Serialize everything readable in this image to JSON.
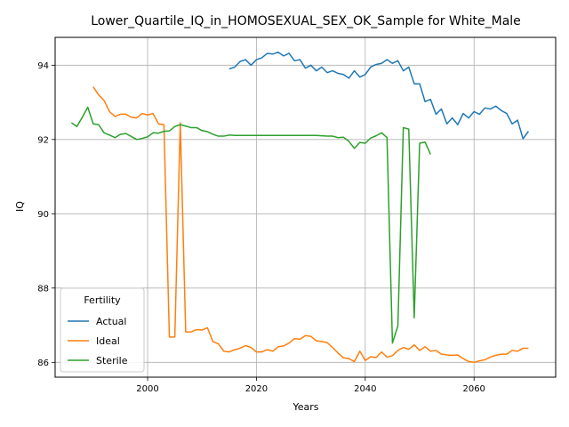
{
  "chart_data": {
    "type": "line",
    "title": "Lower_Quartile_IQ_in_HOMOSEXUAL_SEX_OK_Sample for White_Male",
    "xlabel": "Years",
    "ylabel": "IQ",
    "xlim": [
      1983,
      2075
    ],
    "ylim": [
      85.6,
      94.75
    ],
    "xticks": [
      2000,
      2020,
      2040,
      2060
    ],
    "yticks": [
      86,
      88,
      90,
      92,
      94
    ],
    "grid": true,
    "legend": {
      "title": "Fertility",
      "position": "lower-left"
    },
    "series": [
      {
        "name": "Actual",
        "color": "#1f77b4",
        "x": [
          2015,
          2016,
          2017,
          2018,
          2019,
          2020,
          2021,
          2022,
          2023,
          2024,
          2025,
          2026,
          2027,
          2028,
          2029,
          2030,
          2031,
          2032,
          2033,
          2034,
          2035,
          2036,
          2037,
          2038,
          2039,
          2040,
          2041,
          2042,
          2043,
          2044,
          2045,
          2046,
          2047,
          2048,
          2049,
          2050,
          2051,
          2052,
          2053,
          2054,
          2055,
          2056,
          2057,
          2058,
          2059,
          2060,
          2061,
          2062,
          2063,
          2064,
          2065,
          2066,
          2067,
          2068,
          2069,
          2070
        ],
        "y": [
          93.9,
          93.95,
          94.1,
          94.15,
          94.0,
          94.15,
          94.2,
          94.32,
          94.3,
          94.35,
          94.25,
          94.32,
          94.12,
          94.15,
          93.92,
          94.0,
          93.85,
          93.95,
          93.8,
          93.85,
          93.78,
          93.75,
          93.65,
          93.85,
          93.68,
          93.75,
          93.95,
          94.02,
          94.05,
          94.15,
          94.05,
          94.12,
          93.85,
          93.95,
          93.5,
          93.5,
          93.02,
          93.08,
          92.68,
          92.82,
          92.42,
          92.58,
          92.4,
          92.7,
          92.58,
          92.75,
          92.68,
          92.85,
          92.82,
          92.9,
          92.78,
          92.7,
          92.42,
          92.52,
          92.02,
          92.22
        ]
      },
      {
        "name": "Ideal",
        "color": "#ff7f0e",
        "x": [
          1990,
          1991,
          1992,
          1993,
          1994,
          1995,
          1996,
          1997,
          1998,
          1999,
          2000,
          2001,
          2002,
          2003,
          2004,
          2005,
          2006,
          2007,
          2008,
          2009,
          2010,
          2011,
          2012,
          2013,
          2014,
          2015,
          2016,
          2017,
          2018,
          2019,
          2020,
          2021,
          2022,
          2023,
          2024,
          2025,
          2026,
          2027,
          2028,
          2029,
          2030,
          2031,
          2032,
          2033,
          2034,
          2035,
          2036,
          2037,
          2038,
          2039,
          2040,
          2041,
          2042,
          2043,
          2044,
          2045,
          2046,
          2047,
          2048,
          2049,
          2050,
          2051,
          2052,
          2053,
          2054,
          2055,
          2056,
          2057,
          2058,
          2059,
          2060,
          2061,
          2062,
          2063,
          2064,
          2065,
          2066,
          2067,
          2068,
          2069,
          2070
        ],
        "y": [
          93.42,
          93.2,
          93.05,
          92.75,
          92.62,
          92.68,
          92.68,
          92.6,
          92.58,
          92.7,
          92.66,
          92.7,
          92.42,
          92.4,
          86.68,
          86.68,
          92.45,
          86.82,
          86.82,
          86.88,
          86.87,
          86.93,
          86.56,
          86.5,
          86.3,
          86.28,
          86.34,
          86.38,
          86.45,
          86.4,
          86.28,
          86.28,
          86.34,
          86.3,
          86.42,
          86.44,
          86.52,
          86.64,
          86.62,
          86.72,
          86.7,
          86.58,
          86.56,
          86.53,
          86.4,
          86.25,
          86.12,
          86.1,
          86.02,
          86.3,
          86.05,
          86.15,
          86.13,
          86.28,
          86.14,
          86.18,
          86.32,
          86.4,
          86.35,
          86.47,
          86.32,
          86.42,
          86.3,
          86.32,
          86.22,
          86.2,
          86.19,
          86.2,
          86.1,
          86.02,
          86.0,
          86.04,
          86.07,
          86.14,
          86.19,
          86.22,
          86.22,
          86.32,
          86.3,
          86.38,
          86.38
        ]
      },
      {
        "name": "Sterile",
        "color": "#2ca02c",
        "x": [
          1986,
          1987,
          1988,
          1989,
          1990,
          1991,
          1992,
          1993,
          1994,
          1995,
          1996,
          1997,
          1998,
          1999,
          2000,
          2001,
          2002,
          2003,
          2004,
          2005,
          2006,
          2007,
          2008,
          2009,
          2010,
          2011,
          2012,
          2013,
          2014,
          2015,
          2016,
          2017,
          2018,
          2019,
          2020,
          2021,
          2022,
          2023,
          2024,
          2025,
          2026,
          2027,
          2028,
          2029,
          2030,
          2031,
          2032,
          2033,
          2034,
          2035,
          2036,
          2037,
          2038,
          2039,
          2040,
          2041,
          2042,
          2043,
          2044,
          2045,
          2046,
          2047,
          2048,
          2049,
          2050,
          2051,
          2052
        ],
        "y": [
          92.45,
          92.35,
          92.6,
          92.87,
          92.42,
          92.4,
          92.18,
          92.12,
          92.05,
          92.14,
          92.16,
          92.08,
          92.0,
          92.03,
          92.07,
          92.18,
          92.17,
          92.22,
          92.23,
          92.35,
          92.4,
          92.36,
          92.32,
          92.32,
          92.24,
          92.21,
          92.14,
          92.09,
          92.09,
          92.12,
          92.11,
          92.11,
          92.11,
          92.11,
          92.11,
          92.11,
          92.11,
          92.11,
          92.11,
          92.11,
          92.11,
          92.11,
          92.11,
          92.11,
          92.11,
          92.11,
          92.1,
          92.09,
          92.09,
          92.05,
          92.06,
          91.95,
          91.76,
          91.92,
          91.9,
          92.04,
          92.1,
          92.18,
          92.05,
          86.52,
          86.98,
          92.32,
          92.28,
          87.2,
          91.9,
          91.93,
          91.6
        ]
      }
    ]
  }
}
